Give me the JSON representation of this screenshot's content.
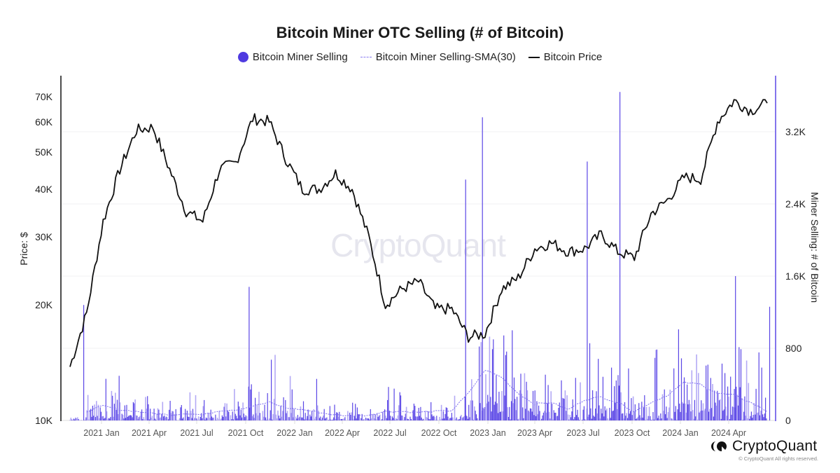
{
  "header": {
    "title": "Bitcoin Miner OTC Selling (# of Bitcoin)"
  },
  "legend": {
    "items": [
      {
        "label": "Bitcoin Miner Selling",
        "marker": "dot",
        "color": "#4f3ae0"
      },
      {
        "label": "Bitcoin Miner Selling-SMA(30)",
        "marker": "dashed-line",
        "color": "#8b7cf0"
      },
      {
        "label": "Bitcoin Price",
        "marker": "solid-line",
        "color": "#111111"
      }
    ]
  },
  "axes": {
    "left_label": "Price: $",
    "right_label": "Miner Selling: # of Bitcoin",
    "left_ticks": [
      "70K",
      "60K",
      "50K",
      "40K",
      "30K",
      "20K",
      "10K"
    ],
    "right_ticks": [
      "3.2K",
      "2.4K",
      "1.6K",
      "800",
      "0"
    ],
    "x_ticks": [
      "2021 Jan",
      "2021 Apr",
      "2021 Jul",
      "2021 Oct",
      "2022 Jan",
      "2022 Apr",
      "2022 Jul",
      "2022 Oct",
      "2023 Jan",
      "2023 Apr",
      "2023 Jul",
      "2023 Oct",
      "2024 Jan",
      "2024 Apr"
    ]
  },
  "watermark": "CryptoQuant",
  "branding": {
    "name": "CryptoQuant",
    "copyright": "© CryptoQuant All rights reserved."
  },
  "chart_data": {
    "type": "bar+line",
    "title": "Bitcoin Miner OTC Selling (# of Bitcoin)",
    "xlabel": "",
    "ylabel_left": "Price: $",
    "ylabel_right": "Miner Selling: # of Bitcoin",
    "y_left_scale": "log",
    "y_left_range": [
      10000,
      75000
    ],
    "y_right_range": [
      0,
      3800
    ],
    "legend_position": "top-center",
    "grid": true,
    "x": [
      "2020 Nov",
      "2020 Dec",
      "2021 Jan",
      "2021 Feb",
      "2021 Mar",
      "2021 Apr",
      "2021 May",
      "2021 Jun",
      "2021 Jul",
      "2021 Aug",
      "2021 Sep",
      "2021 Oct",
      "2021 Nov",
      "2021 Dec",
      "2022 Jan",
      "2022 Feb",
      "2022 Mar",
      "2022 Apr",
      "2022 May",
      "2022 Jun",
      "2022 Jul",
      "2022 Aug",
      "2022 Sep",
      "2022 Oct",
      "2022 Nov",
      "2022 Dec",
      "2023 Jan",
      "2023 Feb",
      "2023 Mar",
      "2023 Apr",
      "2023 May",
      "2023 Jun",
      "2023 Jul",
      "2023 Aug",
      "2023 Sep",
      "2023 Oct",
      "2023 Nov",
      "2023 Dec",
      "2024 Jan",
      "2024 Feb",
      "2024 Mar",
      "2024 Apr",
      "2024 May"
    ],
    "series": [
      {
        "name": "Bitcoin Price",
        "type": "line",
        "axis": "left",
        "values": [
          13800,
          19000,
          33000,
          45000,
          57000,
          58000,
          45000,
          35000,
          33000,
          45000,
          47000,
          61000,
          60000,
          48000,
          40000,
          40000,
          44000,
          40000,
          30000,
          20000,
          22000,
          23000,
          19500,
          19500,
          16500,
          16800,
          22000,
          23500,
          28000,
          29000,
          27500,
          28000,
          30500,
          27500,
          26500,
          34500,
          37500,
          43000,
          42500,
          60000,
          68000,
          64000,
          67000
        ]
      },
      {
        "name": "Bitcoin Miner Selling",
        "type": "bar",
        "axis": "right",
        "notable_spikes": [
          {
            "date": "2020 Dec",
            "value": 1280
          },
          {
            "date": "2021 Oct",
            "value": 1480
          },
          {
            "date": "2022 Nov",
            "value": 2670
          },
          {
            "date": "2022 Dec",
            "value": 3360
          },
          {
            "date": "2023 Jun",
            "value": 2870
          },
          {
            "date": "2023 Aug",
            "value": 3640
          },
          {
            "date": "2024 Mar",
            "value": 1600
          },
          {
            "date": "2024 May",
            "value": 1260
          }
        ],
        "typical_range": [
          0,
          600
        ]
      },
      {
        "name": "Bitcoin Miner Selling-SMA(30)",
        "type": "line",
        "axis": "right",
        "values": [
          0,
          100,
          160,
          120,
          100,
          80,
          60,
          80,
          60,
          110,
          120,
          160,
          200,
          140,
          120,
          90,
          60,
          50,
          60,
          100,
          100,
          90,
          100,
          110,
          300,
          560,
          480,
          300,
          180,
          200,
          120,
          230,
          260,
          200,
          100,
          200,
          280,
          420,
          400,
          300,
          280,
          200,
          100
        ]
      }
    ]
  }
}
